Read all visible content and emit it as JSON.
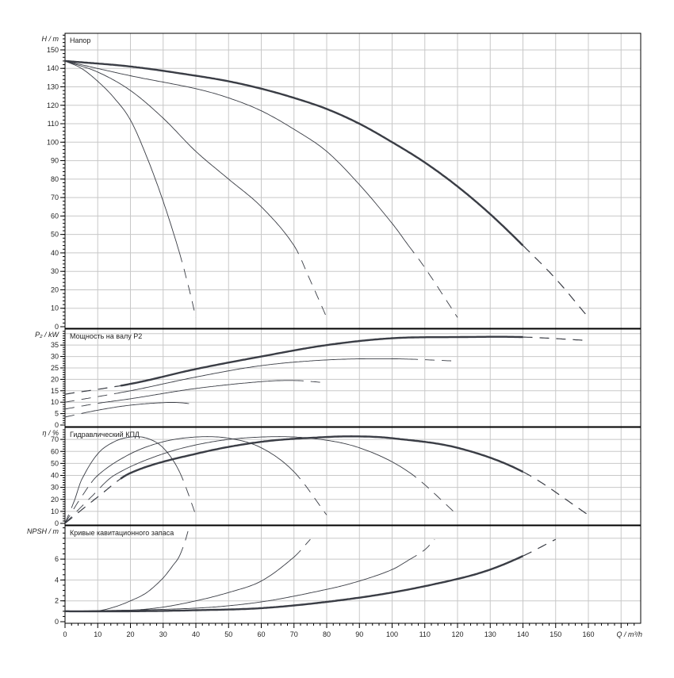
{
  "chart_data": {
    "type": "line",
    "x": {
      "label": "Q / m³/h",
      "ticks": [
        0,
        10,
        20,
        30,
        40,
        50,
        60,
        70,
        80,
        90,
        100,
        110,
        120,
        130,
        140,
        150,
        160
      ],
      "range": [
        0,
        176
      ]
    },
    "colors": {
      "curve": "#3a3d45",
      "grid": "#c8c8c8",
      "axis": "#000000"
    },
    "panels": [
      {
        "title": "Напор",
        "ylabel": "H / m",
        "ylim": [
          0,
          159
        ],
        "ticks": [
          0,
          10,
          20,
          30,
          40,
          50,
          60,
          70,
          80,
          90,
          100,
          110,
          120,
          130,
          140,
          150
        ],
        "grid_step": 10,
        "series": [
          {
            "name": "n1",
            "solid": [
              0,
              35
            ],
            "points": [
              [
                0,
                144
              ],
              [
                5,
                140
              ],
              [
                10,
                133
              ],
              [
                15,
                124
              ],
              [
                20,
                112
              ],
              [
                25,
                92
              ],
              [
                30,
                68
              ],
              [
                35,
                40
              ],
              [
                38,
                20
              ],
              [
                40,
                5
              ]
            ]
          },
          {
            "name": "n2",
            "solid": [
              0,
              70
            ],
            "points": [
              [
                0,
                144
              ],
              [
                10,
                138
              ],
              [
                20,
                128
              ],
              [
                30,
                113
              ],
              [
                40,
                95
              ],
              [
                50,
                80
              ],
              [
                60,
                65
              ],
              [
                70,
                44
              ],
              [
                75,
                25
              ],
              [
                80,
                5
              ]
            ]
          },
          {
            "name": "n3",
            "solid": [
              0,
              105
            ],
            "points": [
              [
                0,
                144
              ],
              [
                20,
                136
              ],
              [
                40,
                129
              ],
              [
                50,
                124
              ],
              [
                60,
                117
              ],
              [
                70,
                107
              ],
              [
                80,
                95
              ],
              [
                90,
                77
              ],
              [
                100,
                56
              ],
              [
                105,
                44
              ],
              [
                110,
                32
              ],
              [
                120,
                5
              ]
            ]
          },
          {
            "name": "n4",
            "solid": [
              0,
              140
            ],
            "thick": true,
            "points": [
              [
                0,
                144
              ],
              [
                20,
                141
              ],
              [
                40,
                136
              ],
              [
                50,
                133
              ],
              [
                60,
                129
              ],
              [
                70,
                124
              ],
              [
                80,
                118
              ],
              [
                90,
                110
              ],
              [
                100,
                100
              ],
              [
                110,
                89
              ],
              [
                120,
                76
              ],
              [
                130,
                61
              ],
              [
                140,
                44
              ],
              [
                150,
                26
              ],
              [
                160,
                5
              ]
            ]
          }
        ]
      },
      {
        "title": "Мощность на валу P2",
        "ylabel": "P₂ / kW",
        "ylim": [
          0,
          42
        ],
        "ticks": [
          0,
          5,
          10,
          15,
          20,
          25,
          30,
          35
        ],
        "grid_step": 5,
        "series": [
          {
            "name": "n1",
            "solid": [
              5,
              35
            ],
            "points": [
              [
                0,
                3.5
              ],
              [
                10,
                6.5
              ],
              [
                20,
                8.7
              ],
              [
                30,
                9.8
              ],
              [
                35,
                9.8
              ],
              [
                40,
                9
              ]
            ]
          },
          {
            "name": "n2",
            "solid": [
              10,
              70
            ],
            "points": [
              [
                0,
                7
              ],
              [
                10,
                9.5
              ],
              [
                20,
                11.5
              ],
              [
                40,
                16
              ],
              [
                60,
                19
              ],
              [
                70,
                19.5
              ],
              [
                80,
                18.5
              ]
            ]
          },
          {
            "name": "n3",
            "solid": [
              15,
              105
            ],
            "points": [
              [
                0,
                10
              ],
              [
                20,
                15
              ],
              [
                40,
                21
              ],
              [
                60,
                26
              ],
              [
                80,
                28.5
              ],
              [
                100,
                29
              ],
              [
                120,
                28
              ]
            ]
          },
          {
            "name": "n4",
            "solid": [
              17,
              140
            ],
            "thick": true,
            "points": [
              [
                0,
                13.5
              ],
              [
                20,
                18
              ],
              [
                40,
                24.5
              ],
              [
                60,
                30
              ],
              [
                80,
                35
              ],
              [
                100,
                38
              ],
              [
                120,
                38.5
              ],
              [
                140,
                38.5
              ],
              [
                160,
                37
              ]
            ]
          }
        ]
      },
      {
        "title": "Гидравлический КПД",
        "ylabel": "η / %",
        "ylim": [
          0,
          80
        ],
        "ticks": [
          0,
          10,
          20,
          30,
          40,
          50,
          60,
          70
        ],
        "grid_step": 10,
        "series": [
          {
            "name": "n1",
            "solid": [
              3,
              35
            ],
            "points": [
              [
                0,
                0
              ],
              [
                3,
                20
              ],
              [
                5,
                36
              ],
              [
                10,
                58
              ],
              [
                15,
                68
              ],
              [
                20,
                72
              ],
              [
                25,
                71
              ],
              [
                30,
                63
              ],
              [
                35,
                43
              ],
              [
                40,
                7
              ]
            ]
          },
          {
            "name": "n2",
            "solid": [
              8,
              70
            ],
            "points": [
              [
                0,
                0
              ],
              [
                5,
                22
              ],
              [
                10,
                40
              ],
              [
                20,
                58
              ],
              [
                30,
                68
              ],
              [
                40,
                72
              ],
              [
                50,
                71
              ],
              [
                60,
                63
              ],
              [
                70,
                43
              ],
              [
                80,
                7
              ]
            ]
          },
          {
            "name": "n3",
            "solid": [
              12,
              105
            ],
            "points": [
              [
                0,
                0
              ],
              [
                8,
                22
              ],
              [
                15,
                40
              ],
              [
                30,
                58
              ],
              [
                45,
                68
              ],
              [
                60,
                72
              ],
              [
                75,
                71
              ],
              [
                90,
                63
              ],
              [
                105,
                43
              ],
              [
                120,
                7
              ]
            ]
          },
          {
            "name": "n4",
            "solid": [
              17,
              140
            ],
            "thick": true,
            "points": [
              [
                0,
                0
              ],
              [
                10,
                22
              ],
              [
                20,
                42
              ],
              [
                40,
                58
              ],
              [
                60,
                68
              ],
              [
                80,
                72
              ],
              [
                90,
                72.5
              ],
              [
                100,
                71
              ],
              [
                120,
                63
              ],
              [
                140,
                43
              ],
              [
                160,
                7
              ]
            ]
          }
        ]
      },
      {
        "title": "Кривые кавитационного запаса",
        "ylabel": "NPSH / m",
        "ylim": [
          0,
          9.2
        ],
        "ticks": [
          0,
          2,
          4,
          6
        ],
        "grid_step": 2,
        "series": [
          {
            "name": "n1",
            "solid": [
              0,
              35
            ],
            "points": [
              [
                0,
                1
              ],
              [
                10,
                1.05
              ],
              [
                15,
                1.4
              ],
              [
                20,
                2
              ],
              [
                25,
                2.8
              ],
              [
                30,
                4.2
              ],
              [
                33,
                5.4
              ],
              [
                35,
                6.3
              ],
              [
                37,
                8
              ],
              [
                38,
                9.2
              ]
            ]
          },
          {
            "name": "n2",
            "solid": [
              0,
              70
            ],
            "points": [
              [
                0,
                1
              ],
              [
                20,
                1.1
              ],
              [
                30,
                1.4
              ],
              [
                40,
                2
              ],
              [
                50,
                2.8
              ],
              [
                60,
                3.9
              ],
              [
                70,
                6.2
              ],
              [
                75,
                7.9
              ]
            ]
          },
          {
            "name": "n3",
            "solid": [
              0,
              105
            ],
            "points": [
              [
                0,
                1
              ],
              [
                40,
                1.3
              ],
              [
                60,
                1.9
              ],
              [
                80,
                3.1
              ],
              [
                90,
                3.9
              ],
              [
                100,
                5
              ],
              [
                105,
                5.9
              ],
              [
                110,
                6.9
              ],
              [
                113,
                7.9
              ]
            ]
          },
          {
            "name": "n4",
            "solid": [
              0,
              140
            ],
            "thick": true,
            "points": [
              [
                0,
                1
              ],
              [
                20,
                1
              ],
              [
                40,
                1.1
              ],
              [
                60,
                1.3
              ],
              [
                80,
                1.9
              ],
              [
                100,
                2.8
              ],
              [
                120,
                4.1
              ],
              [
                130,
                5
              ],
              [
                140,
                6.3
              ],
              [
                150,
                7.9
              ]
            ]
          }
        ]
      }
    ]
  }
}
